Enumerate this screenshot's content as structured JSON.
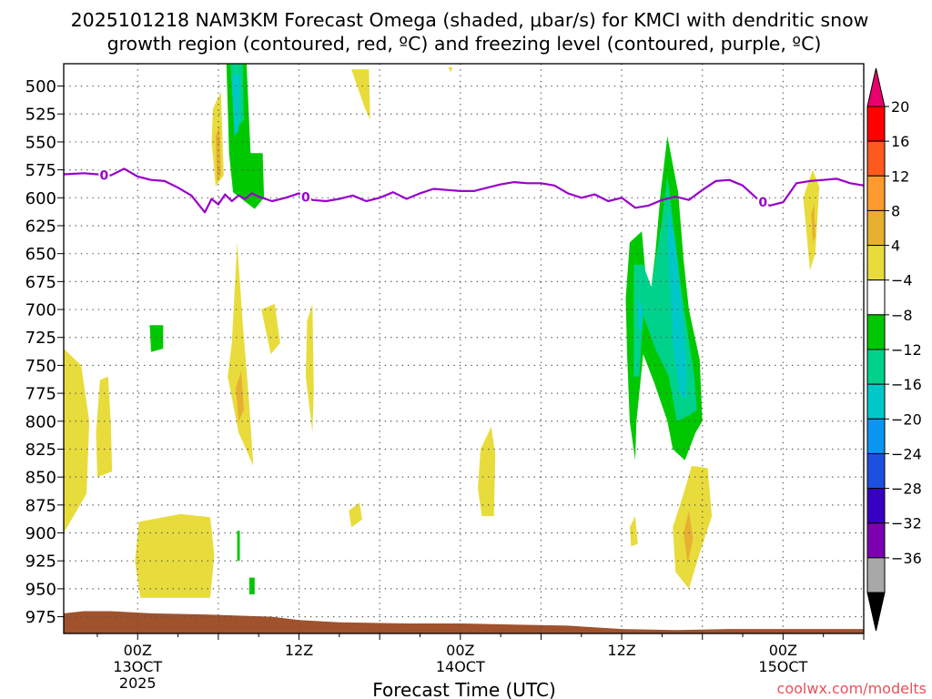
{
  "chart_data": {
    "type": "heatmap",
    "title_line1": "2025101218 NAM3KM Forecast Omega (shaded, μbar/s) for KMCI with dendritic snow",
    "title_line2": "growth region (contoured, red, ºC) and freezing level (contoured, purple, ºC)",
    "xlabel": "Forecast Time (UTC)",
    "ylabel": "",
    "watermark": "coolwx.com/modelts",
    "x_range_hours": [
      -5.5,
      54
    ],
    "y_range_hpa": [
      480,
      990
    ],
    "y_ticks": [
      500,
      525,
      550,
      575,
      600,
      625,
      650,
      675,
      700,
      725,
      750,
      775,
      800,
      825,
      850,
      875,
      900,
      925,
      950,
      975
    ],
    "x_ticks": [
      {
        "hour": 0,
        "label": "00Z",
        "date": "13OCT",
        "year": "2025"
      },
      {
        "hour": 12,
        "label": "12Z",
        "date": "",
        "year": ""
      },
      {
        "hour": 24,
        "label": "00Z",
        "date": "14OCT",
        "year": ""
      },
      {
        "hour": 36,
        "label": "12Z",
        "date": "",
        "year": ""
      },
      {
        "hour": 48,
        "label": "00Z",
        "date": "15OCT",
        "year": ""
      }
    ],
    "colorbar": {
      "labels": [
        "20",
        "16",
        "12",
        "8",
        "4",
        "−4",
        "−8",
        "−12",
        "−16",
        "−20",
        "−24",
        "−28",
        "−32",
        "−36"
      ],
      "colors": [
        "#ff0000",
        "#ff5a1e",
        "#ff9a2e",
        "#e8b030",
        "#e8dc3c",
        "#ffffff",
        "#00c800",
        "#00d28c",
        "#00c8c8",
        "#0a96f0",
        "#1c50e0",
        "#3800c0",
        "#7c00b0",
        "#a8a8a8"
      ],
      "top_arrow_color": "#e8006c",
      "bottom_arrow_color": "#000000"
    },
    "freezing_level": {
      "label": "0",
      "color": "#9900cc",
      "hours": [
        -5.5,
        -4,
        -3,
        -2,
        -1,
        0,
        1,
        2,
        3,
        4,
        5,
        5.5,
        6,
        6.5,
        7,
        7.5,
        8,
        8.5,
        9,
        10,
        11,
        12,
        13,
        14,
        15,
        16,
        17,
        18,
        19,
        20,
        21,
        22,
        23,
        24,
        25,
        26,
        27,
        28,
        29,
        30,
        31,
        32,
        33,
        34,
        35,
        36,
        37,
        38,
        39,
        40,
        41,
        42,
        43,
        44,
        45,
        46,
        47,
        48,
        49,
        50,
        51,
        52,
        53,
        54
      ],
      "pressure_hpa": [
        579,
        578,
        579,
        580,
        574,
        581,
        584,
        585,
        591,
        598,
        613,
        601,
        606,
        597,
        603,
        598,
        601,
        596,
        599,
        603,
        600,
        596,
        602,
        603,
        601,
        598,
        603,
        600,
        595,
        601,
        596,
        592,
        593,
        594,
        594,
        591,
        588,
        586,
        587,
        587,
        589,
        596,
        600,
        597,
        603,
        600,
        609,
        607,
        602,
        599,
        602,
        593,
        585,
        584,
        589,
        600,
        607,
        604,
        587,
        585,
        584,
        583,
        587,
        589
      ]
    },
    "terrain": {
      "label": "surface",
      "color": "#a0522d",
      "hours": [
        -5.5,
        -4,
        -2,
        1,
        5,
        10,
        12,
        15,
        20,
        24,
        28,
        32,
        36,
        40,
        44,
        48,
        52,
        54
      ],
      "pressure_hpa": [
        972,
        970,
        970,
        972,
        973,
        975,
        978,
        980,
        981,
        981,
        982,
        983,
        986,
        987,
        986,
        986,
        986,
        986
      ]
    },
    "omega_areas": [
      {
        "category": "4",
        "color": "#e8dc3c",
        "points": [
          [
            -5.5,
            735
          ],
          [
            -4.2,
            750
          ],
          [
            -3.6,
            800
          ],
          [
            -3.8,
            865
          ],
          [
            -5.5,
            900
          ]
        ]
      },
      {
        "category": "4",
        "color": "#e8dc3c",
        "points": [
          [
            -2.8,
            763
          ],
          [
            -2.2,
            760
          ],
          [
            -2.0,
            800
          ],
          [
            -1.9,
            845
          ],
          [
            -3.0,
            850
          ],
          [
            -3.1,
            810
          ]
        ]
      },
      {
        "category": "4",
        "color": "#e8dc3c",
        "points": [
          [
            0.1,
            890
          ],
          [
            3.2,
            883
          ],
          [
            5.4,
            886
          ],
          [
            5.7,
            920
          ],
          [
            5.4,
            958
          ],
          [
            0.2,
            958
          ],
          [
            -0.2,
            925
          ]
        ]
      },
      {
        "category": "4",
        "color": "#e8dc3c",
        "points": [
          [
            5.6,
            520
          ],
          [
            6.2,
            505
          ],
          [
            6.4,
            580
          ],
          [
            5.8,
            590
          ],
          [
            5.5,
            550
          ]
        ]
      },
      {
        "category": "4",
        "color": "#e8dc3c",
        "points": [
          [
            7.0,
            730
          ],
          [
            7.4,
            640
          ],
          [
            7.8,
            710
          ],
          [
            8.3,
            785
          ],
          [
            8.6,
            840
          ],
          [
            7.5,
            810
          ],
          [
            6.7,
            760
          ]
        ]
      },
      {
        "category": "4",
        "color": "#e8dc3c",
        "points": [
          [
            9.2,
            700
          ],
          [
            10.2,
            695
          ],
          [
            10.6,
            730
          ],
          [
            9.9,
            740
          ]
        ]
      },
      {
        "category": "4",
        "color": "#e8dc3c",
        "points": [
          [
            12.6,
            710
          ],
          [
            13.0,
            695
          ],
          [
            13.1,
            770
          ],
          [
            13.0,
            810
          ],
          [
            12.5,
            760
          ]
        ]
      },
      {
        "category": "4",
        "color": "#e8dc3c",
        "points": [
          [
            15.9,
            485
          ],
          [
            17.2,
            485
          ],
          [
            17.3,
            530
          ],
          [
            16.9,
            520
          ]
        ]
      },
      {
        "category": "4",
        "color": "#e8dc3c",
        "points": [
          [
            23.1,
            483
          ],
          [
            23.4,
            483
          ],
          [
            23.3,
            488
          ]
        ]
      },
      {
        "category": "4",
        "color": "#e8dc3c",
        "points": [
          [
            25.5,
            825
          ],
          [
            26.3,
            805
          ],
          [
            26.6,
            830
          ],
          [
            26.5,
            885
          ],
          [
            25.6,
            885
          ],
          [
            25.3,
            860
          ]
        ]
      },
      {
        "category": "4",
        "color": "#e8dc3c",
        "points": [
          [
            15.7,
            880
          ],
          [
            16.5,
            873
          ],
          [
            16.7,
            888
          ],
          [
            15.9,
            895
          ]
        ]
      },
      {
        "category": "4",
        "color": "#e8dc3c",
        "points": [
          [
            36.6,
            895
          ],
          [
            37.0,
            885
          ],
          [
            37.2,
            910
          ],
          [
            36.7,
            912
          ]
        ]
      },
      {
        "category": "4",
        "color": "#e8dc3c",
        "points": [
          [
            39.8,
            895
          ],
          [
            40.6,
            865
          ],
          [
            41.2,
            840
          ],
          [
            42.4,
            842
          ],
          [
            42.7,
            885
          ],
          [
            41.7,
            922
          ],
          [
            41.0,
            950
          ],
          [
            40.0,
            935
          ]
        ]
      },
      {
        "category": "4",
        "color": "#e8dc3c",
        "points": [
          [
            49.5,
            600
          ],
          [
            50.2,
            575
          ],
          [
            50.7,
            590
          ],
          [
            50.4,
            650
          ],
          [
            50.0,
            665
          ]
        ]
      },
      {
        "category": "8",
        "color": "#e8b030",
        "points": [
          [
            5.8,
            545
          ],
          [
            6.1,
            535
          ],
          [
            6.2,
            580
          ],
          [
            5.9,
            585
          ]
        ]
      },
      {
        "category": "8",
        "color": "#e8b030",
        "points": [
          [
            7.3,
            770
          ],
          [
            7.7,
            755
          ],
          [
            7.9,
            790
          ],
          [
            7.5,
            800
          ]
        ]
      },
      {
        "category": "8",
        "color": "#e8b030",
        "points": [
          [
            40.6,
            900
          ],
          [
            41.0,
            880
          ],
          [
            41.3,
            905
          ],
          [
            40.9,
            928
          ]
        ]
      },
      {
        "category": "8",
        "color": "#e8b030",
        "points": [
          [
            50.1,
            615
          ],
          [
            50.3,
            605
          ],
          [
            50.4,
            635
          ],
          [
            50.2,
            640
          ]
        ]
      },
      {
        "category": "-4",
        "color": "#00c800",
        "points": [
          [
            6.6,
            480
          ],
          [
            8.1,
            480
          ],
          [
            8.4,
            560
          ],
          [
            9.3,
            560
          ],
          [
            9.4,
            600
          ],
          [
            8.7,
            610
          ],
          [
            7.1,
            595
          ],
          [
            6.8,
            560
          ]
        ]
      },
      {
        "category": "-4",
        "color": "#00c800",
        "points": [
          [
            0.9,
            714
          ],
          [
            1.9,
            714
          ],
          [
            1.9,
            735
          ],
          [
            1.0,
            738
          ]
        ]
      },
      {
        "category": "-4",
        "color": "#00c800",
        "points": [
          [
            7.4,
            898
          ],
          [
            7.6,
            898
          ],
          [
            7.6,
            925
          ],
          [
            7.4,
            925
          ]
        ]
      },
      {
        "category": "-4",
        "color": "#00c800",
        "points": [
          [
            8.3,
            940
          ],
          [
            8.7,
            940
          ],
          [
            8.7,
            955
          ],
          [
            8.3,
            955
          ]
        ]
      },
      {
        "category": "-4",
        "color": "#00c800",
        "points": [
          [
            36.6,
            640
          ],
          [
            37.5,
            630
          ],
          [
            38.0,
            700
          ],
          [
            38.5,
            650
          ],
          [
            38.9,
            595
          ],
          [
            39.4,
            545
          ],
          [
            40.2,
            595
          ],
          [
            40.6,
            655
          ],
          [
            41.0,
            700
          ],
          [
            41.8,
            745
          ],
          [
            42.0,
            800
          ],
          [
            41.5,
            810
          ],
          [
            40.7,
            835
          ],
          [
            39.8,
            825
          ],
          [
            39.4,
            800
          ],
          [
            38.4,
            765
          ],
          [
            37.6,
            740
          ],
          [
            37.1,
            800
          ],
          [
            37.0,
            835
          ],
          [
            36.6,
            800
          ],
          [
            36.4,
            740
          ],
          [
            36.3,
            690
          ]
        ]
      },
      {
        "category": "-8",
        "color": "#00d28c",
        "points": [
          [
            6.9,
            480
          ],
          [
            7.8,
            480
          ],
          [
            7.9,
            530
          ],
          [
            7.2,
            540
          ]
        ]
      },
      {
        "category": "-8",
        "color": "#00d28c",
        "points": [
          [
            36.9,
            660
          ],
          [
            37.6,
            660
          ],
          [
            38.2,
            680
          ],
          [
            39.0,
            620
          ],
          [
            39.4,
            580
          ],
          [
            39.8,
            620
          ],
          [
            40.4,
            680
          ],
          [
            40.9,
            720
          ],
          [
            41.4,
            760
          ],
          [
            41.6,
            790
          ],
          [
            41.0,
            795
          ],
          [
            40.1,
            800
          ],
          [
            39.5,
            760
          ],
          [
            38.5,
            735
          ],
          [
            37.6,
            705
          ],
          [
            37.3,
            760
          ],
          [
            36.9,
            760
          ]
        ]
      },
      {
        "category": "-12",
        "color": "#00c8c8",
        "points": [
          [
            7.0,
            490
          ],
          [
            7.6,
            490
          ],
          [
            7.5,
            540
          ],
          [
            7.2,
            545
          ]
        ]
      },
      {
        "category": "-12",
        "color": "#00c8c8",
        "points": [
          [
            37.2,
            690
          ],
          [
            37.6,
            700
          ],
          [
            37.5,
            720
          ],
          [
            37.2,
            715
          ]
        ]
      },
      {
        "category": "-12",
        "color": "#00c8c8",
        "points": [
          [
            39.5,
            610
          ],
          [
            40.0,
            640
          ],
          [
            40.3,
            680
          ],
          [
            40.8,
            740
          ],
          [
            40.8,
            780
          ],
          [
            40.3,
            775
          ],
          [
            39.8,
            730
          ],
          [
            39.6,
            680
          ],
          [
            39.4,
            640
          ]
        ]
      }
    ]
  }
}
